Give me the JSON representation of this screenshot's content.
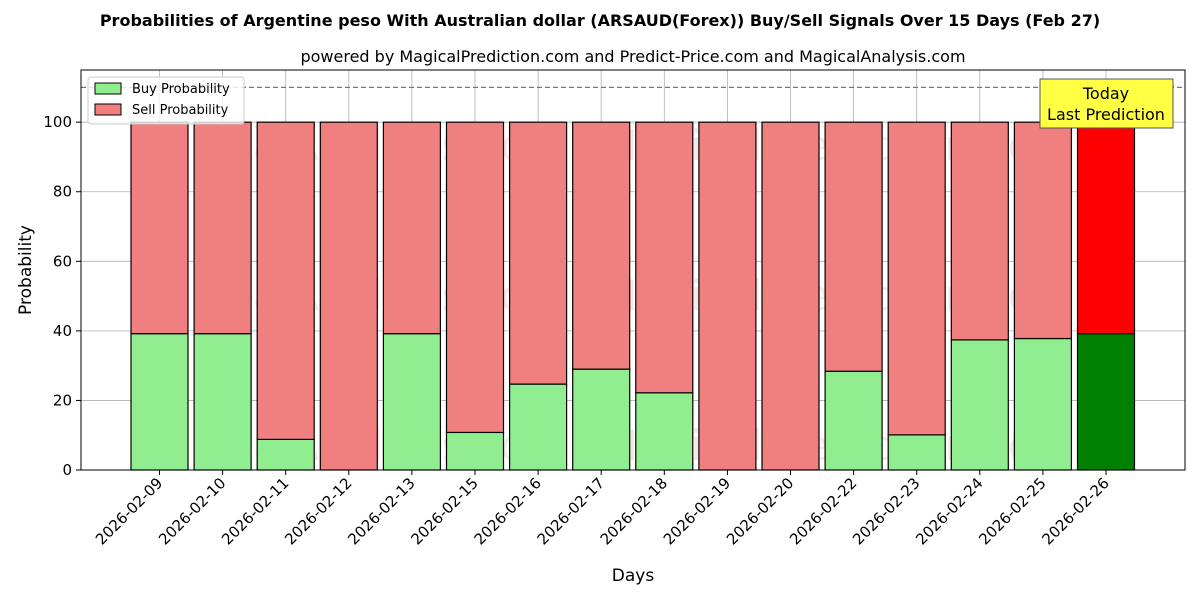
{
  "chart_data": {
    "type": "bar",
    "stacked": true,
    "title": "Probabilities of Argentine peso With Australian dollar (ARSAUD(Forex)) Buy/Sell Signals Over 15 Days (Feb 27)",
    "subtitle": "powered by MagicalPrediction.com and Predict-Price.com and MagicalAnalysis.com",
    "xlabel": "Days",
    "ylabel": "Probability",
    "ylim": [
      0,
      115
    ],
    "yticks": [
      0,
      20,
      40,
      60,
      80,
      100
    ],
    "reference_line": 110,
    "grid": true,
    "legend_position": "top-left",
    "categories": [
      "2026-02-09",
      "2026-02-10",
      "2026-02-11",
      "2026-02-12",
      "2026-02-13",
      "2026-02-15",
      "2026-02-16",
      "2026-02-17",
      "2026-02-18",
      "2026-02-19",
      "2026-02-20",
      "2026-02-22",
      "2026-02-23",
      "2026-02-24",
      "2026-02-25",
      "2026-02-26"
    ],
    "series": [
      {
        "name": "Buy Probability",
        "color": "#90ee90",
        "highlight_color": "#008000",
        "values": [
          39.2,
          39.2,
          8.8,
          0,
          39.2,
          10.8,
          24.7,
          29.0,
          22.2,
          0,
          0,
          28.4,
          10.1,
          37.4,
          37.8,
          39.2
        ]
      },
      {
        "name": "Sell Probability",
        "color": "#f08080",
        "highlight_color": "#ff0000",
        "values": [
          60.8,
          60.8,
          91.2,
          100,
          60.8,
          89.2,
          75.3,
          71.0,
          77.8,
          100,
          100,
          71.6,
          89.9,
          62.6,
          62.2,
          60.8
        ]
      }
    ],
    "highlight_index": 15,
    "annotation": {
      "line1": "Today",
      "line2": "Last Prediction",
      "color": "#ffff44"
    },
    "watermarks": [
      "MagicalAnalysis.com",
      "MagicalPrediction.com"
    ]
  }
}
